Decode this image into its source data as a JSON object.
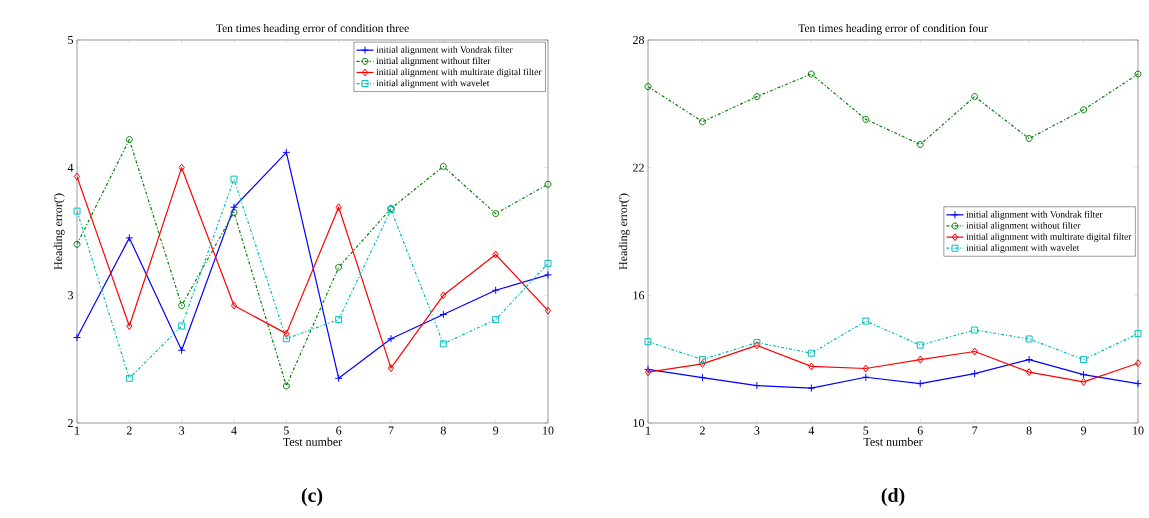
{
  "chart_data": [
    {
      "type": "line",
      "title": "Ten times heading error of condition three",
      "xlabel": "Test number",
      "ylabel": "Heading error(')",
      "annotations": [
        "(c)"
      ],
      "x": [
        1,
        2,
        3,
        4,
        5,
        6,
        7,
        8,
        9,
        10
      ],
      "xlim": [
        1,
        10
      ],
      "xticks": [
        1,
        2,
        3,
        4,
        5,
        6,
        7,
        8,
        9,
        10
      ],
      "ylim": [
        2,
        5
      ],
      "yticks": [
        2,
        3,
        4,
        5
      ],
      "legend": "top right",
      "series": [
        {
          "name": "initial alignment with Vondrak filter",
          "color": "#0000ff",
          "marker": "cross",
          "line_style": "solid",
          "values": [
            2.67,
            3.45,
            2.57,
            3.69,
            4.12,
            2.35,
            2.66,
            2.85,
            3.04,
            3.16
          ]
        },
        {
          "name": "initial alignment without filter",
          "color": "#008000",
          "marker": "circle",
          "line_style": "dashed",
          "values": [
            3.4,
            4.22,
            2.92,
            3.65,
            2.29,
            3.22,
            3.68,
            4.01,
            3.64,
            3.87
          ]
        },
        {
          "name": "initial alignment with multirate digital filter",
          "color": "#ff0000",
          "marker": "diamond",
          "line_style": "solid",
          "values": [
            3.93,
            2.76,
            4.0,
            2.92,
            2.7,
            3.69,
            2.43,
            3.0,
            3.32,
            2.88
          ]
        },
        {
          "name": "initial alignment with wavelet",
          "color": "#00bfbf",
          "marker": "square",
          "line_style": "dashed",
          "values": [
            3.66,
            2.35,
            2.76,
            3.91,
            2.66,
            2.81,
            3.67,
            2.62,
            2.81,
            3.25
          ]
        }
      ]
    },
    {
      "type": "line",
      "title": "Ten times heading error of condition four",
      "xlabel": "Test number",
      "ylabel": "Heading error(')",
      "annotations": [
        "(d)"
      ],
      "x": [
        1,
        2,
        3,
        4,
        5,
        6,
        7,
        8,
        9,
        10
      ],
      "xlim": [
        1,
        10
      ],
      "xticks": [
        1,
        2,
        3,
        4,
        5,
        6,
        7,
        8,
        9,
        10
      ],
      "ylim": [
        10,
        28
      ],
      "yticks": [
        10,
        16,
        22,
        28
      ],
      "legend": "right",
      "series": [
        {
          "name": "initial alignment with Vondrak filter",
          "color": "#0000ff",
          "marker": "cross",
          "line_style": "solid",
          "values": [
            12.52,
            12.13,
            11.76,
            11.64,
            12.15,
            11.85,
            12.32,
            12.98,
            12.27,
            11.85
          ]
        },
        {
          "name": "initial alignment without filter",
          "color": "#008000",
          "marker": "circle",
          "line_style": "dashed",
          "values": [
            25.81,
            24.16,
            25.34,
            26.4,
            24.27,
            23.09,
            25.34,
            23.37,
            24.72,
            26.4
          ]
        },
        {
          "name": "initial alignment with multirate digital filter",
          "color": "#ff0000",
          "marker": "diamond",
          "line_style": "solid",
          "values": [
            12.39,
            12.78,
            13.65,
            12.66,
            12.56,
            12.98,
            13.36,
            12.39,
            11.93,
            12.81
          ]
        },
        {
          "name": "initial alignment with wavelet",
          "color": "#00bfbf",
          "marker": "square",
          "line_style": "dashed",
          "values": [
            13.82,
            12.98,
            13.78,
            13.28,
            14.79,
            13.66,
            14.37,
            13.95,
            12.98,
            14.2
          ]
        }
      ]
    }
  ]
}
